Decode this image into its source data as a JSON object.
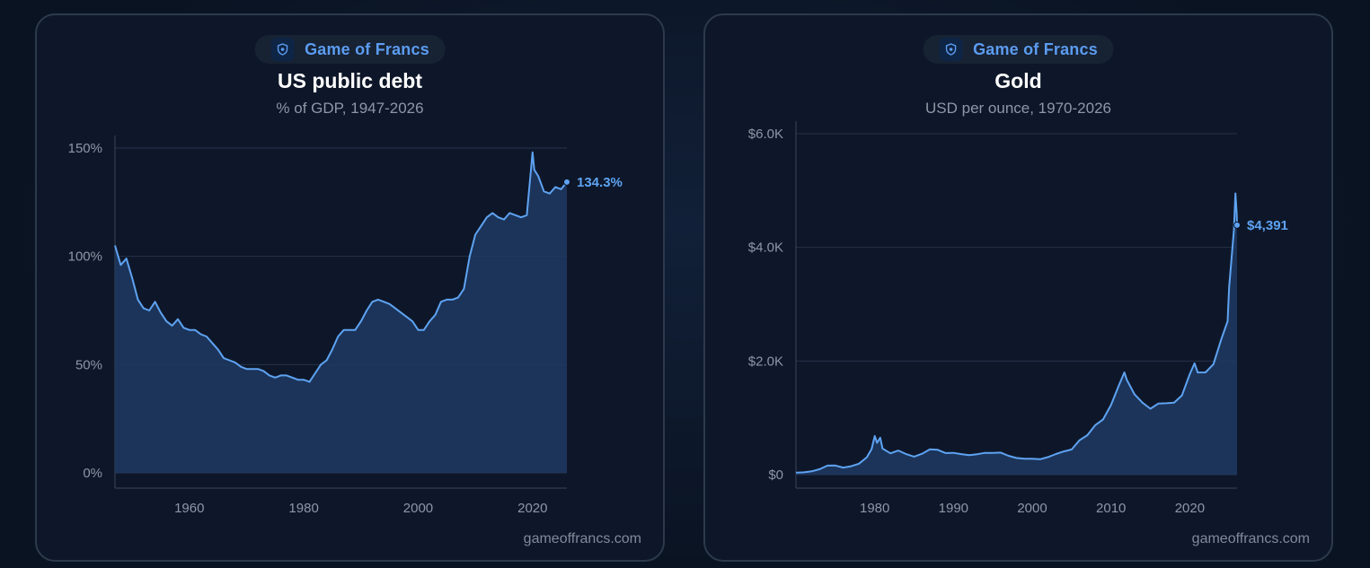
{
  "brand": {
    "name": "Game of Francs",
    "logo_icon": "shield-logo-icon"
  },
  "footer": "gameoffrancs.com",
  "chart_data": [
    {
      "type": "area",
      "title": "US public debt",
      "subtitle": "% of GDP, 1947-2026",
      "color": "#5ea3f2",
      "xlim": [
        1947,
        2026
      ],
      "ylim": [
        0,
        150
      ],
      "y_ticks": [
        0,
        50,
        100,
        150
      ],
      "y_tick_labels": [
        "0%",
        "50%",
        "100%",
        "150%"
      ],
      "x_ticks": [
        1960,
        1980,
        2000,
        2020
      ],
      "x_tick_labels": [
        "1960",
        "1980",
        "2000",
        "2020"
      ],
      "grid": true,
      "end_label": "134.3%",
      "points": [
        [
          1947,
          105
        ],
        [
          1948,
          96
        ],
        [
          1949,
          99
        ],
        [
          1950,
          90
        ],
        [
          1951,
          80
        ],
        [
          1952,
          76
        ],
        [
          1953,
          75
        ],
        [
          1954,
          79
        ],
        [
          1955,
          74
        ],
        [
          1956,
          70
        ],
        [
          1957,
          68
        ],
        [
          1958,
          71
        ],
        [
          1959,
          67
        ],
        [
          1960,
          66
        ],
        [
          1961,
          66
        ],
        [
          1962,
          64
        ],
        [
          1963,
          63
        ],
        [
          1964,
          60
        ],
        [
          1965,
          57
        ],
        [
          1966,
          53
        ],
        [
          1967,
          52
        ],
        [
          1968,
          51
        ],
        [
          1969,
          49
        ],
        [
          1970,
          48
        ],
        [
          1971,
          48
        ],
        [
          1972,
          48
        ],
        [
          1973,
          47
        ],
        [
          1974,
          45
        ],
        [
          1975,
          44
        ],
        [
          1976,
          45
        ],
        [
          1977,
          45
        ],
        [
          1978,
          44
        ],
        [
          1979,
          43
        ],
        [
          1980,
          43
        ],
        [
          1981,
          42
        ],
        [
          1982,
          46
        ],
        [
          1983,
          50
        ],
        [
          1984,
          52
        ],
        [
          1985,
          57
        ],
        [
          1986,
          63
        ],
        [
          1987,
          66
        ],
        [
          1988,
          66
        ],
        [
          1989,
          66
        ],
        [
          1990,
          70
        ],
        [
          1991,
          75
        ],
        [
          1992,
          79
        ],
        [
          1993,
          80
        ],
        [
          1994,
          79
        ],
        [
          1995,
          78
        ],
        [
          1996,
          76
        ],
        [
          1997,
          74
        ],
        [
          1998,
          72
        ],
        [
          1999,
          70
        ],
        [
          2000,
          66
        ],
        [
          2001,
          66
        ],
        [
          2002,
          70
        ],
        [
          2003,
          73
        ],
        [
          2004,
          79
        ],
        [
          2005,
          80
        ],
        [
          2006,
          80
        ],
        [
          2007,
          81
        ],
        [
          2008,
          85
        ],
        [
          2009,
          100
        ],
        [
          2010,
          110
        ],
        [
          2011,
          114
        ],
        [
          2012,
          118
        ],
        [
          2013,
          120
        ],
        [
          2014,
          118
        ],
        [
          2015,
          117
        ],
        [
          2016,
          120
        ],
        [
          2017,
          119
        ],
        [
          2018,
          118
        ],
        [
          2019,
          119
        ],
        [
          2020,
          148
        ],
        [
          2020.3,
          140
        ],
        [
          2021,
          137
        ],
        [
          2022,
          130
        ],
        [
          2023,
          129
        ],
        [
          2024,
          132
        ],
        [
          2025,
          131
        ],
        [
          2026,
          134.3
        ]
      ]
    },
    {
      "type": "area",
      "title": "Gold",
      "subtitle": "USD per ounce, 1970-2026",
      "color": "#5ea3f2",
      "xlim": [
        1970,
        2026
      ],
      "ylim": [
        0,
        6000
      ],
      "y_ticks": [
        0,
        2000,
        4000,
        6000
      ],
      "y_tick_labels": [
        "$0",
        "$2.0K",
        "$4.0K",
        "$6.0K"
      ],
      "x_ticks": [
        1980,
        1990,
        2000,
        2010,
        2020
      ],
      "x_tick_labels": [
        "1980",
        "1990",
        "2000",
        "2010",
        "2020"
      ],
      "grid": true,
      "end_label": "$4,391",
      "points": [
        [
          1970,
          36
        ],
        [
          1971,
          41
        ],
        [
          1972,
          58
        ],
        [
          1973,
          97
        ],
        [
          1974,
          159
        ],
        [
          1975,
          161
        ],
        [
          1976,
          125
        ],
        [
          1977,
          148
        ],
        [
          1978,
          193
        ],
        [
          1979,
          306
        ],
        [
          1979.6,
          450
        ],
        [
          1980,
          680
        ],
        [
          1980.3,
          560
        ],
        [
          1980.7,
          650
        ],
        [
          1981,
          460
        ],
        [
          1982,
          376
        ],
        [
          1983,
          424
        ],
        [
          1984,
          361
        ],
        [
          1985,
          317
        ],
        [
          1986,
          368
        ],
        [
          1987,
          447
        ],
        [
          1988,
          437
        ],
        [
          1989,
          381
        ],
        [
          1990,
          384
        ],
        [
          1991,
          362
        ],
        [
          1992,
          344
        ],
        [
          1993,
          360
        ],
        [
          1994,
          384
        ],
        [
          1995,
          384
        ],
        [
          1996,
          388
        ],
        [
          1997,
          331
        ],
        [
          1998,
          294
        ],
        [
          1999,
          279
        ],
        [
          2000,
          279
        ],
        [
          2001,
          271
        ],
        [
          2002,
          310
        ],
        [
          2003,
          363
        ],
        [
          2004,
          409
        ],
        [
          2005,
          444
        ],
        [
          2006,
          604
        ],
        [
          2007,
          695
        ],
        [
          2008,
          872
        ],
        [
          2009,
          972
        ],
        [
          2010,
          1225
        ],
        [
          2011,
          1572
        ],
        [
          2011.7,
          1800
        ],
        [
          2012,
          1669
        ],
        [
          2013,
          1411
        ],
        [
          2014,
          1266
        ],
        [
          2015,
          1160
        ],
        [
          2016,
          1251
        ],
        [
          2017,
          1257
        ],
        [
          2018,
          1268
        ],
        [
          2019,
          1393
        ],
        [
          2020,
          1770
        ],
        [
          2020.6,
          1960
        ],
        [
          2021,
          1799
        ],
        [
          2022,
          1800
        ],
        [
          2023,
          1943
        ],
        [
          2024,
          2386
        ],
        [
          2024.8,
          2700
        ],
        [
          2025,
          3300
        ],
        [
          2025.6,
          4300
        ],
        [
          2025.8,
          4950
        ],
        [
          2025.95,
          4600
        ],
        [
          2026,
          4391
        ]
      ]
    }
  ]
}
